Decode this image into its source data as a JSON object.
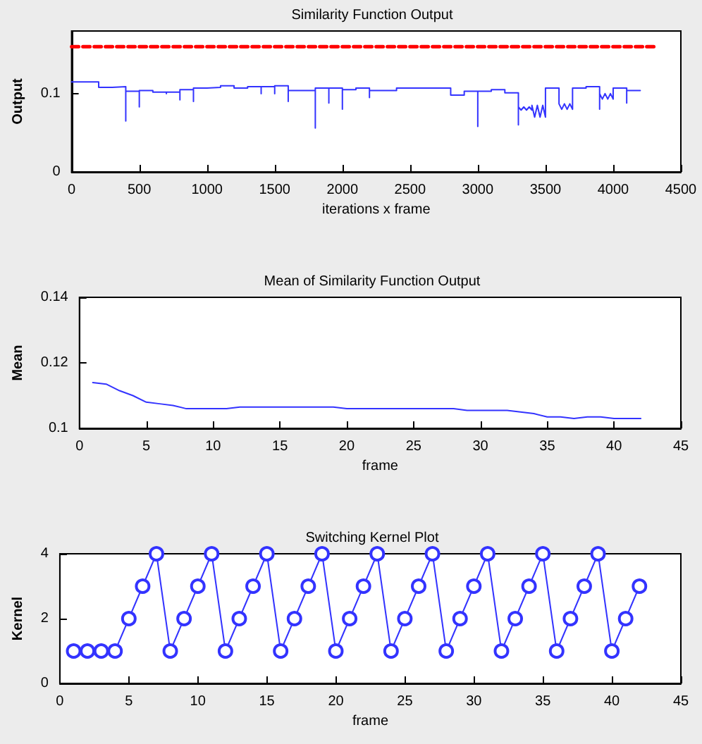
{
  "chart_data": [
    {
      "type": "line",
      "title": "Similarity Function Output",
      "xlabel": "iterations x frame",
      "ylabel": "Output",
      "xlim": [
        0,
        4500
      ],
      "xticks": [
        0,
        500,
        1000,
        1500,
        2000,
        2500,
        3000,
        3500,
        4000,
        4500
      ],
      "ylim": [
        0,
        0.18
      ],
      "yticks": [
        0,
        0.1
      ],
      "marker": "none",
      "series": [
        {
          "color": "#3333ff",
          "line_style": "solid",
          "x": [
            0,
            200,
            200,
            300,
            300,
            400,
            400,
            400,
            500,
            500,
            500,
            600,
            600,
            700,
            700,
            700,
            800,
            800,
            800,
            900,
            900,
            900,
            1000,
            1000,
            1100,
            1100,
            1200,
            1200,
            1300,
            1300,
            1400,
            1400,
            1400,
            1500,
            1500,
            1500,
            1600,
            1600,
            1600,
            1800,
            1800,
            1800,
            1900,
            1900,
            1900,
            2000,
            2000,
            2000,
            2100,
            2100,
            2200,
            2200,
            2200,
            2400,
            2400,
            2800,
            2800,
            2900,
            2900,
            3000,
            3000,
            3000,
            3100,
            3100,
            3200,
            3200,
            3300,
            3300,
            3300,
            3320,
            3340,
            3360,
            3380,
            3400,
            3400,
            3420,
            3440,
            3460,
            3480,
            3500,
            3500,
            3600,
            3600,
            3620,
            3640,
            3660,
            3680,
            3700,
            3700,
            3800,
            3800,
            3900,
            3900,
            3900,
            3920,
            3940,
            3960,
            3980,
            4000,
            4000,
            4100,
            4100,
            4100,
            4200
          ],
          "values": [
            0.115,
            0.115,
            0.108,
            0.108,
            0.109,
            0.109,
            0.065,
            0.103,
            0.103,
            0.083,
            0.104,
            0.104,
            0.102,
            0.102,
            0.1,
            0.102,
            0.102,
            0.092,
            0.105,
            0.105,
            0.09,
            0.107,
            0.107,
            0.108,
            0.108,
            0.11,
            0.11,
            0.107,
            0.107,
            0.109,
            0.109,
            0.1,
            0.109,
            0.109,
            0.1,
            0.11,
            0.11,
            0.09,
            0.104,
            0.104,
            0.056,
            0.107,
            0.107,
            0.088,
            0.107,
            0.107,
            0.08,
            0.105,
            0.105,
            0.107,
            0.107,
            0.095,
            0.104,
            0.104,
            0.107,
            0.107,
            0.098,
            0.098,
            0.103,
            0.103,
            0.058,
            0.103,
            0.103,
            0.105,
            0.105,
            0.101,
            0.101,
            0.06,
            0.083,
            0.079,
            0.083,
            0.079,
            0.083,
            0.079,
            0.085,
            0.07,
            0.085,
            0.07,
            0.085,
            0.07,
            0.107,
            0.107,
            0.087,
            0.08,
            0.087,
            0.08,
            0.087,
            0.08,
            0.107,
            0.107,
            0.109,
            0.109,
            0.08,
            0.1,
            0.093,
            0.1,
            0.093,
            0.1,
            0.093,
            0.107,
            0.107,
            0.088,
            0.104,
            0.104
          ]
        },
        {
          "color": "#ff0000",
          "line_style": "dashed",
          "x": [
            0,
            4300
          ],
          "values": [
            0.16,
            0.16
          ]
        }
      ]
    },
    {
      "type": "line",
      "title": "Mean of Similarity Function Output",
      "xlabel": "frame",
      "ylabel": "Mean",
      "xlim": [
        0,
        45
      ],
      "xticks": [
        0,
        5,
        10,
        15,
        20,
        25,
        30,
        35,
        40,
        45
      ],
      "ylim": [
        0.1,
        0.14
      ],
      "yticks": [
        0.1,
        0.12,
        0.14
      ],
      "marker": "none",
      "series": [
        {
          "color": "#3333ff",
          "line_style": "solid",
          "x": [
            1,
            2,
            3,
            4,
            5,
            6,
            7,
            8,
            9,
            10,
            11,
            12,
            13,
            14,
            15,
            16,
            17,
            18,
            19,
            20,
            21,
            22,
            23,
            24,
            25,
            26,
            27,
            28,
            29,
            30,
            31,
            32,
            33,
            34,
            35,
            36,
            37,
            38,
            39,
            40,
            41,
            42
          ],
          "values": [
            0.114,
            0.1135,
            0.1115,
            0.11,
            0.108,
            0.1075,
            0.107,
            0.106,
            0.106,
            0.106,
            0.106,
            0.1065,
            0.1065,
            0.1065,
            0.1065,
            0.1065,
            0.1065,
            0.1065,
            0.1065,
            0.106,
            0.106,
            0.106,
            0.106,
            0.106,
            0.106,
            0.106,
            0.106,
            0.106,
            0.1055,
            0.1055,
            0.1055,
            0.1055,
            0.105,
            0.1045,
            0.1035,
            0.1035,
            0.103,
            0.1035,
            0.1035,
            0.103,
            0.103,
            0.103
          ]
        }
      ]
    },
    {
      "type": "line",
      "title": "Switching Kernel Plot",
      "xlabel": "frame",
      "ylabel": "Kernel",
      "xlim": [
        0,
        45
      ],
      "xticks": [
        0,
        5,
        10,
        15,
        20,
        25,
        30,
        35,
        40,
        45
      ],
      "ylim": [
        0,
        4
      ],
      "yticks": [
        0,
        2,
        4
      ],
      "marker": "circle",
      "series": [
        {
          "color": "#3333ff",
          "line_style": "solid",
          "x": [
            1,
            2,
            3,
            4,
            5,
            6,
            7,
            8,
            9,
            10,
            11,
            12,
            13,
            14,
            15,
            16,
            17,
            18,
            19,
            20,
            21,
            22,
            23,
            24,
            25,
            26,
            27,
            28,
            29,
            30,
            31,
            32,
            33,
            34,
            35,
            36,
            37,
            38,
            39,
            40,
            41,
            42
          ],
          "values": [
            1,
            1,
            1,
            1,
            2,
            3,
            4,
            1,
            2,
            3,
            4,
            1,
            2,
            3,
            4,
            1,
            2,
            3,
            4,
            1,
            2,
            3,
            4,
            1,
            2,
            3,
            4,
            1,
            2,
            3,
            4,
            1,
            2,
            3,
            4,
            1,
            2,
            3,
            4,
            1,
            2,
            3
          ]
        }
      ]
    }
  ]
}
